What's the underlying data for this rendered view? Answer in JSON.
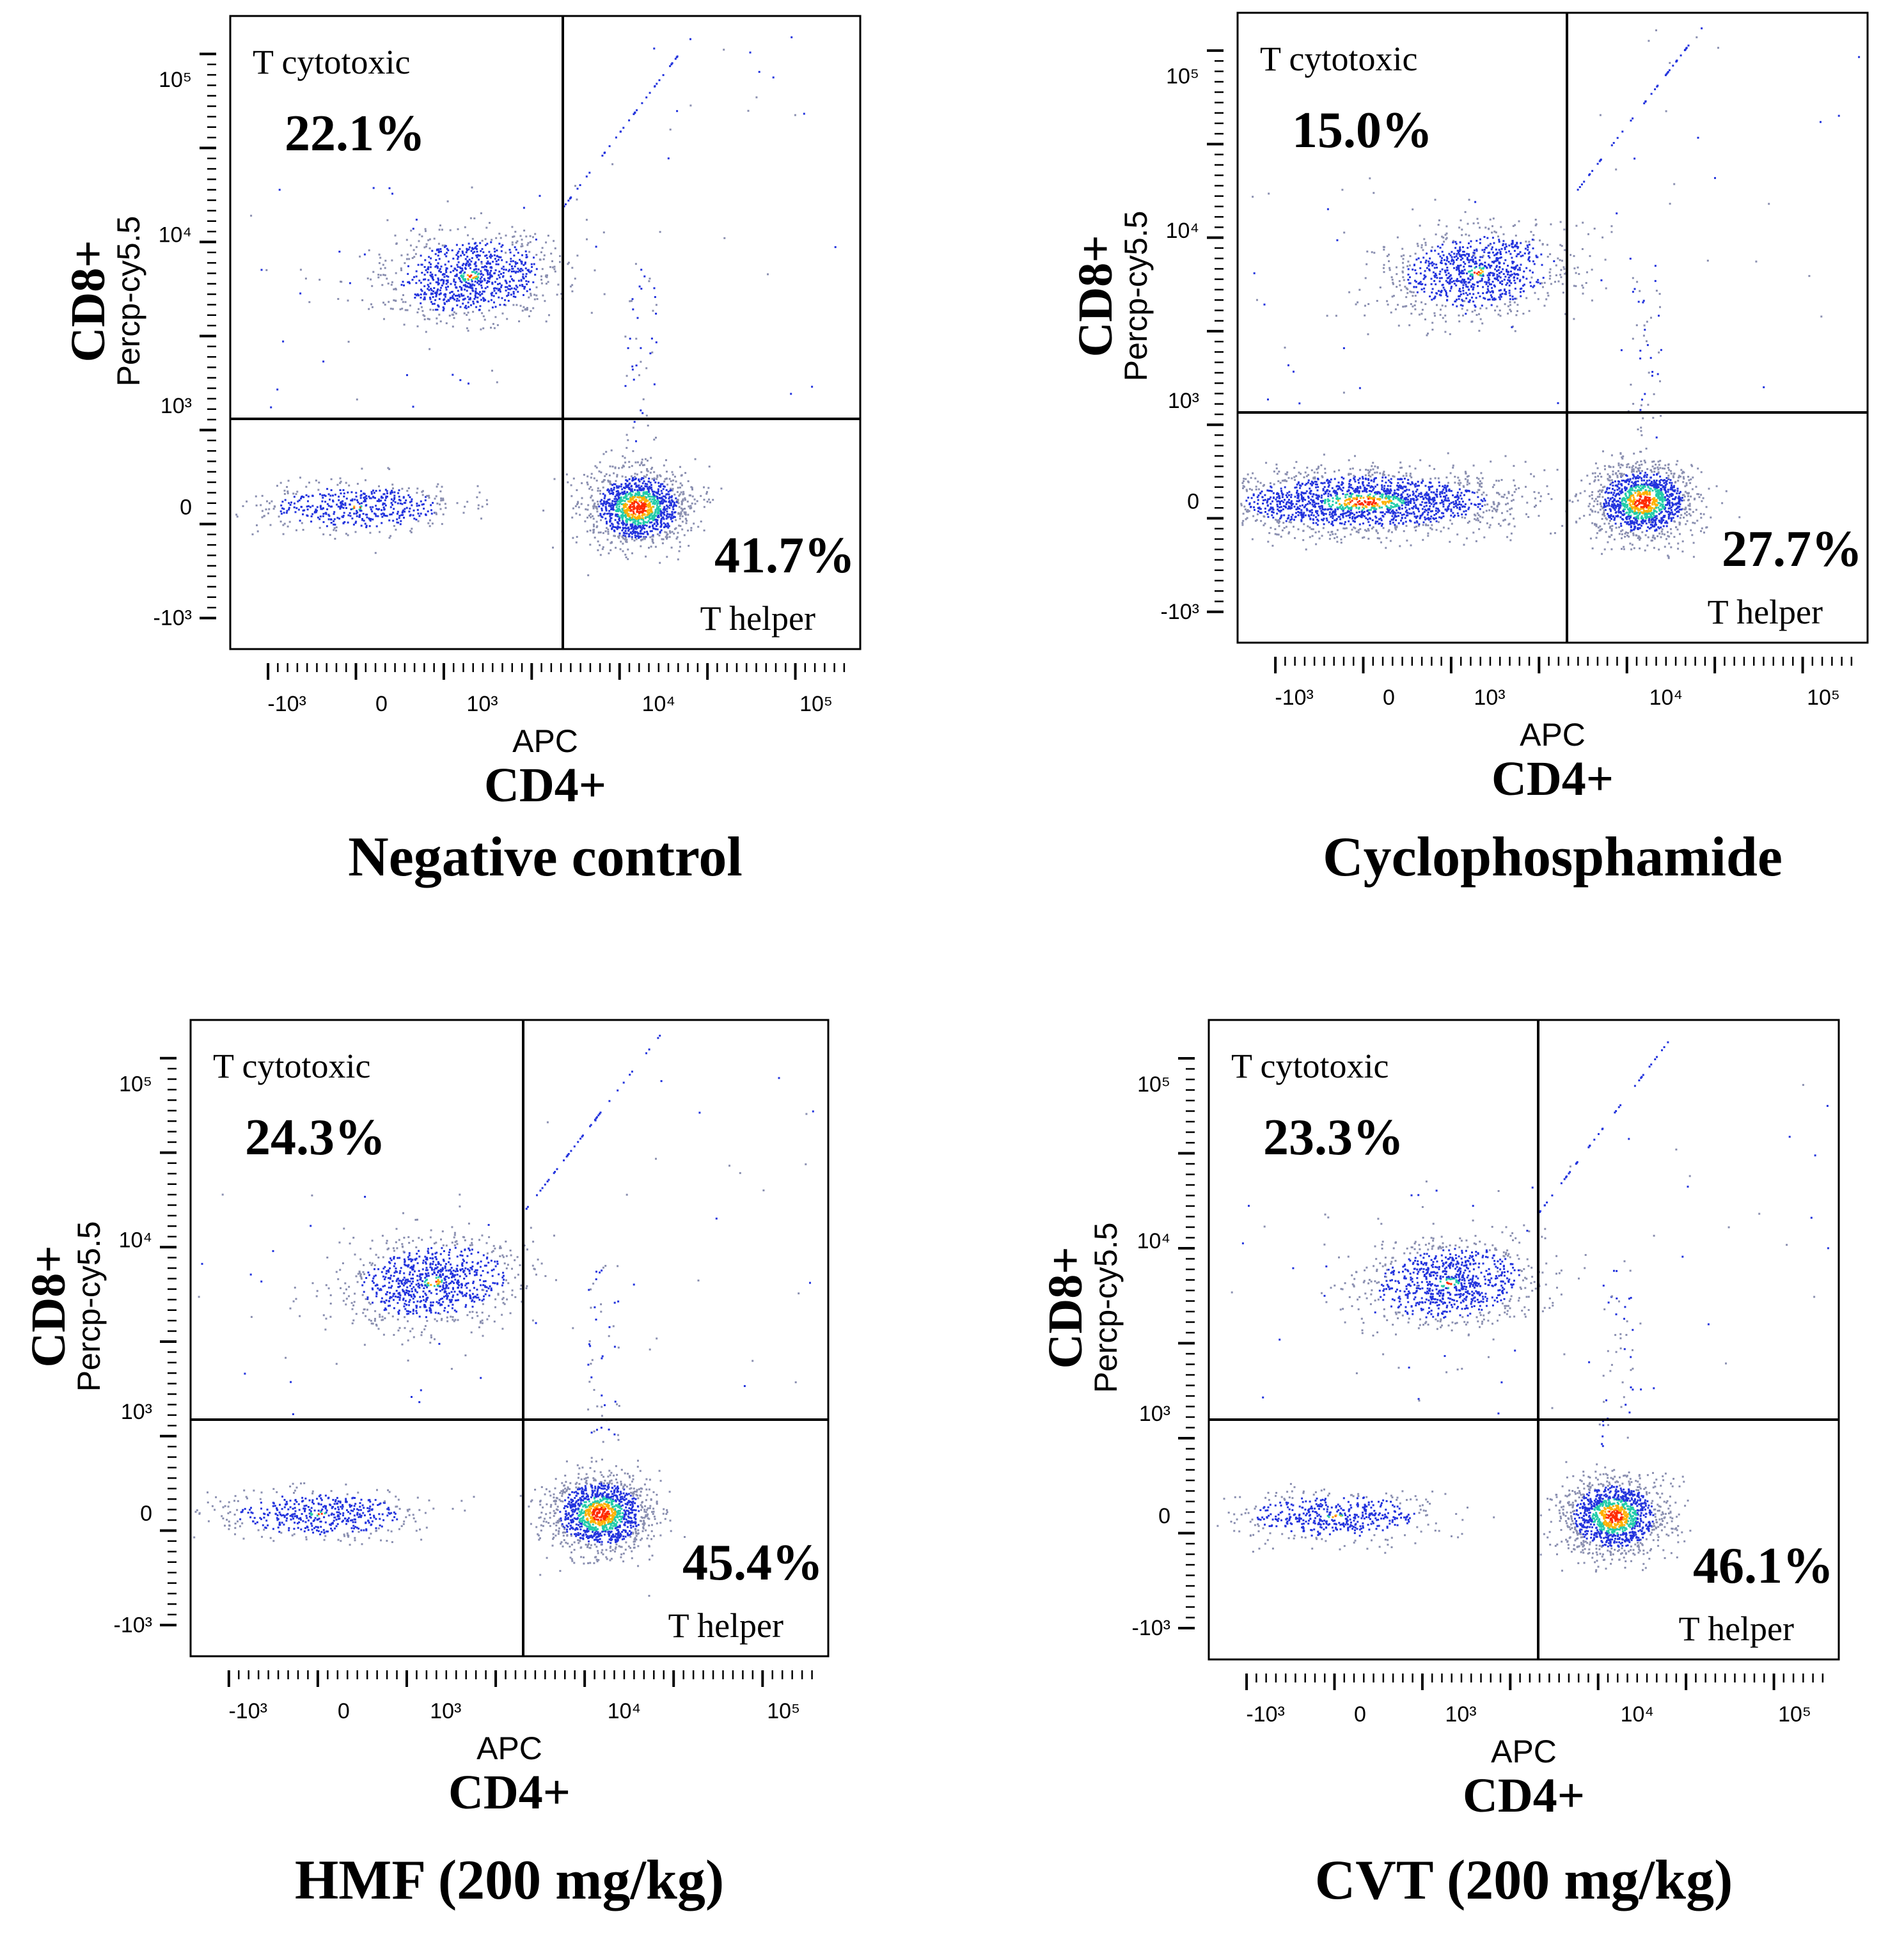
{
  "chart_data": [
    {
      "type": "scatter",
      "title": "Negative control",
      "xlabel": "CD4+",
      "xchannel": "APC",
      "ylabel": "CD8+",
      "ychannel": "Percp-cy5.5",
      "x_ticks": [
        "-10³",
        "0",
        "10³",
        "10⁴",
        "10⁵"
      ],
      "y_ticks": [
        "10⁵",
        "10⁴",
        "10³",
        "0",
        "-10³"
      ],
      "gates": [
        {
          "label": "T cytotoxic",
          "percent": "22.1%",
          "quadrant": "upper-left"
        },
        {
          "label": "T helper",
          "percent": "41.7%",
          "quadrant": "lower-right"
        }
      ]
    },
    {
      "type": "scatter",
      "title": "Cyclophosphamide",
      "xlabel": "CD4+",
      "xchannel": "APC",
      "ylabel": "CD8+",
      "ychannel": "Percp-cy5.5",
      "x_ticks": [
        "-10³",
        "0",
        "10³",
        "10⁴",
        "10⁵"
      ],
      "y_ticks": [
        "10⁵",
        "10⁴",
        "10³",
        "0",
        "-10³"
      ],
      "gates": [
        {
          "label": "T cytotoxic",
          "percent": "15.0%",
          "quadrant": "upper-left"
        },
        {
          "label": "T helper",
          "percent": "27.7%",
          "quadrant": "lower-right"
        }
      ]
    },
    {
      "type": "scatter",
      "title": "HMF (200 mg/kg)",
      "xlabel": "CD4+",
      "xchannel": "APC",
      "ylabel": "CD8+",
      "ychannel": "Percp-cy5.5",
      "x_ticks": [
        "-10³",
        "0",
        "10³",
        "10⁴",
        "10⁵"
      ],
      "y_ticks": [
        "10⁵",
        "10⁴",
        "10³",
        "0",
        "-10³"
      ],
      "gates": [
        {
          "label": "T cytotoxic",
          "percent": "24.3%",
          "quadrant": "upper-left"
        },
        {
          "label": "T helper",
          "percent": "45.4%",
          "quadrant": "lower-right"
        }
      ]
    },
    {
      "type": "scatter",
      "title": "CVT (200 mg/kg)",
      "xlabel": "CD4+",
      "xchannel": "APC",
      "ylabel": "CD8+",
      "ychannel": "Percp-cy5.5",
      "x_ticks": [
        "-10³",
        "0",
        "10³",
        "10⁴",
        "10⁵"
      ],
      "y_ticks": [
        "10⁵",
        "10⁴",
        "10³",
        "0",
        "-10³"
      ],
      "gates": [
        {
          "label": "T cytotoxic",
          "percent": "23.3%",
          "quadrant": "upper-left"
        },
        {
          "label": "T helper",
          "percent": "46.1%",
          "quadrant": "lower-right"
        }
      ]
    }
  ],
  "colors": {
    "density_low": "#8a8fb0",
    "density_mid": "#2233dd",
    "density_high": "#22ccaa",
    "density_peak": "#ff2a00",
    "axis": "#000000"
  }
}
